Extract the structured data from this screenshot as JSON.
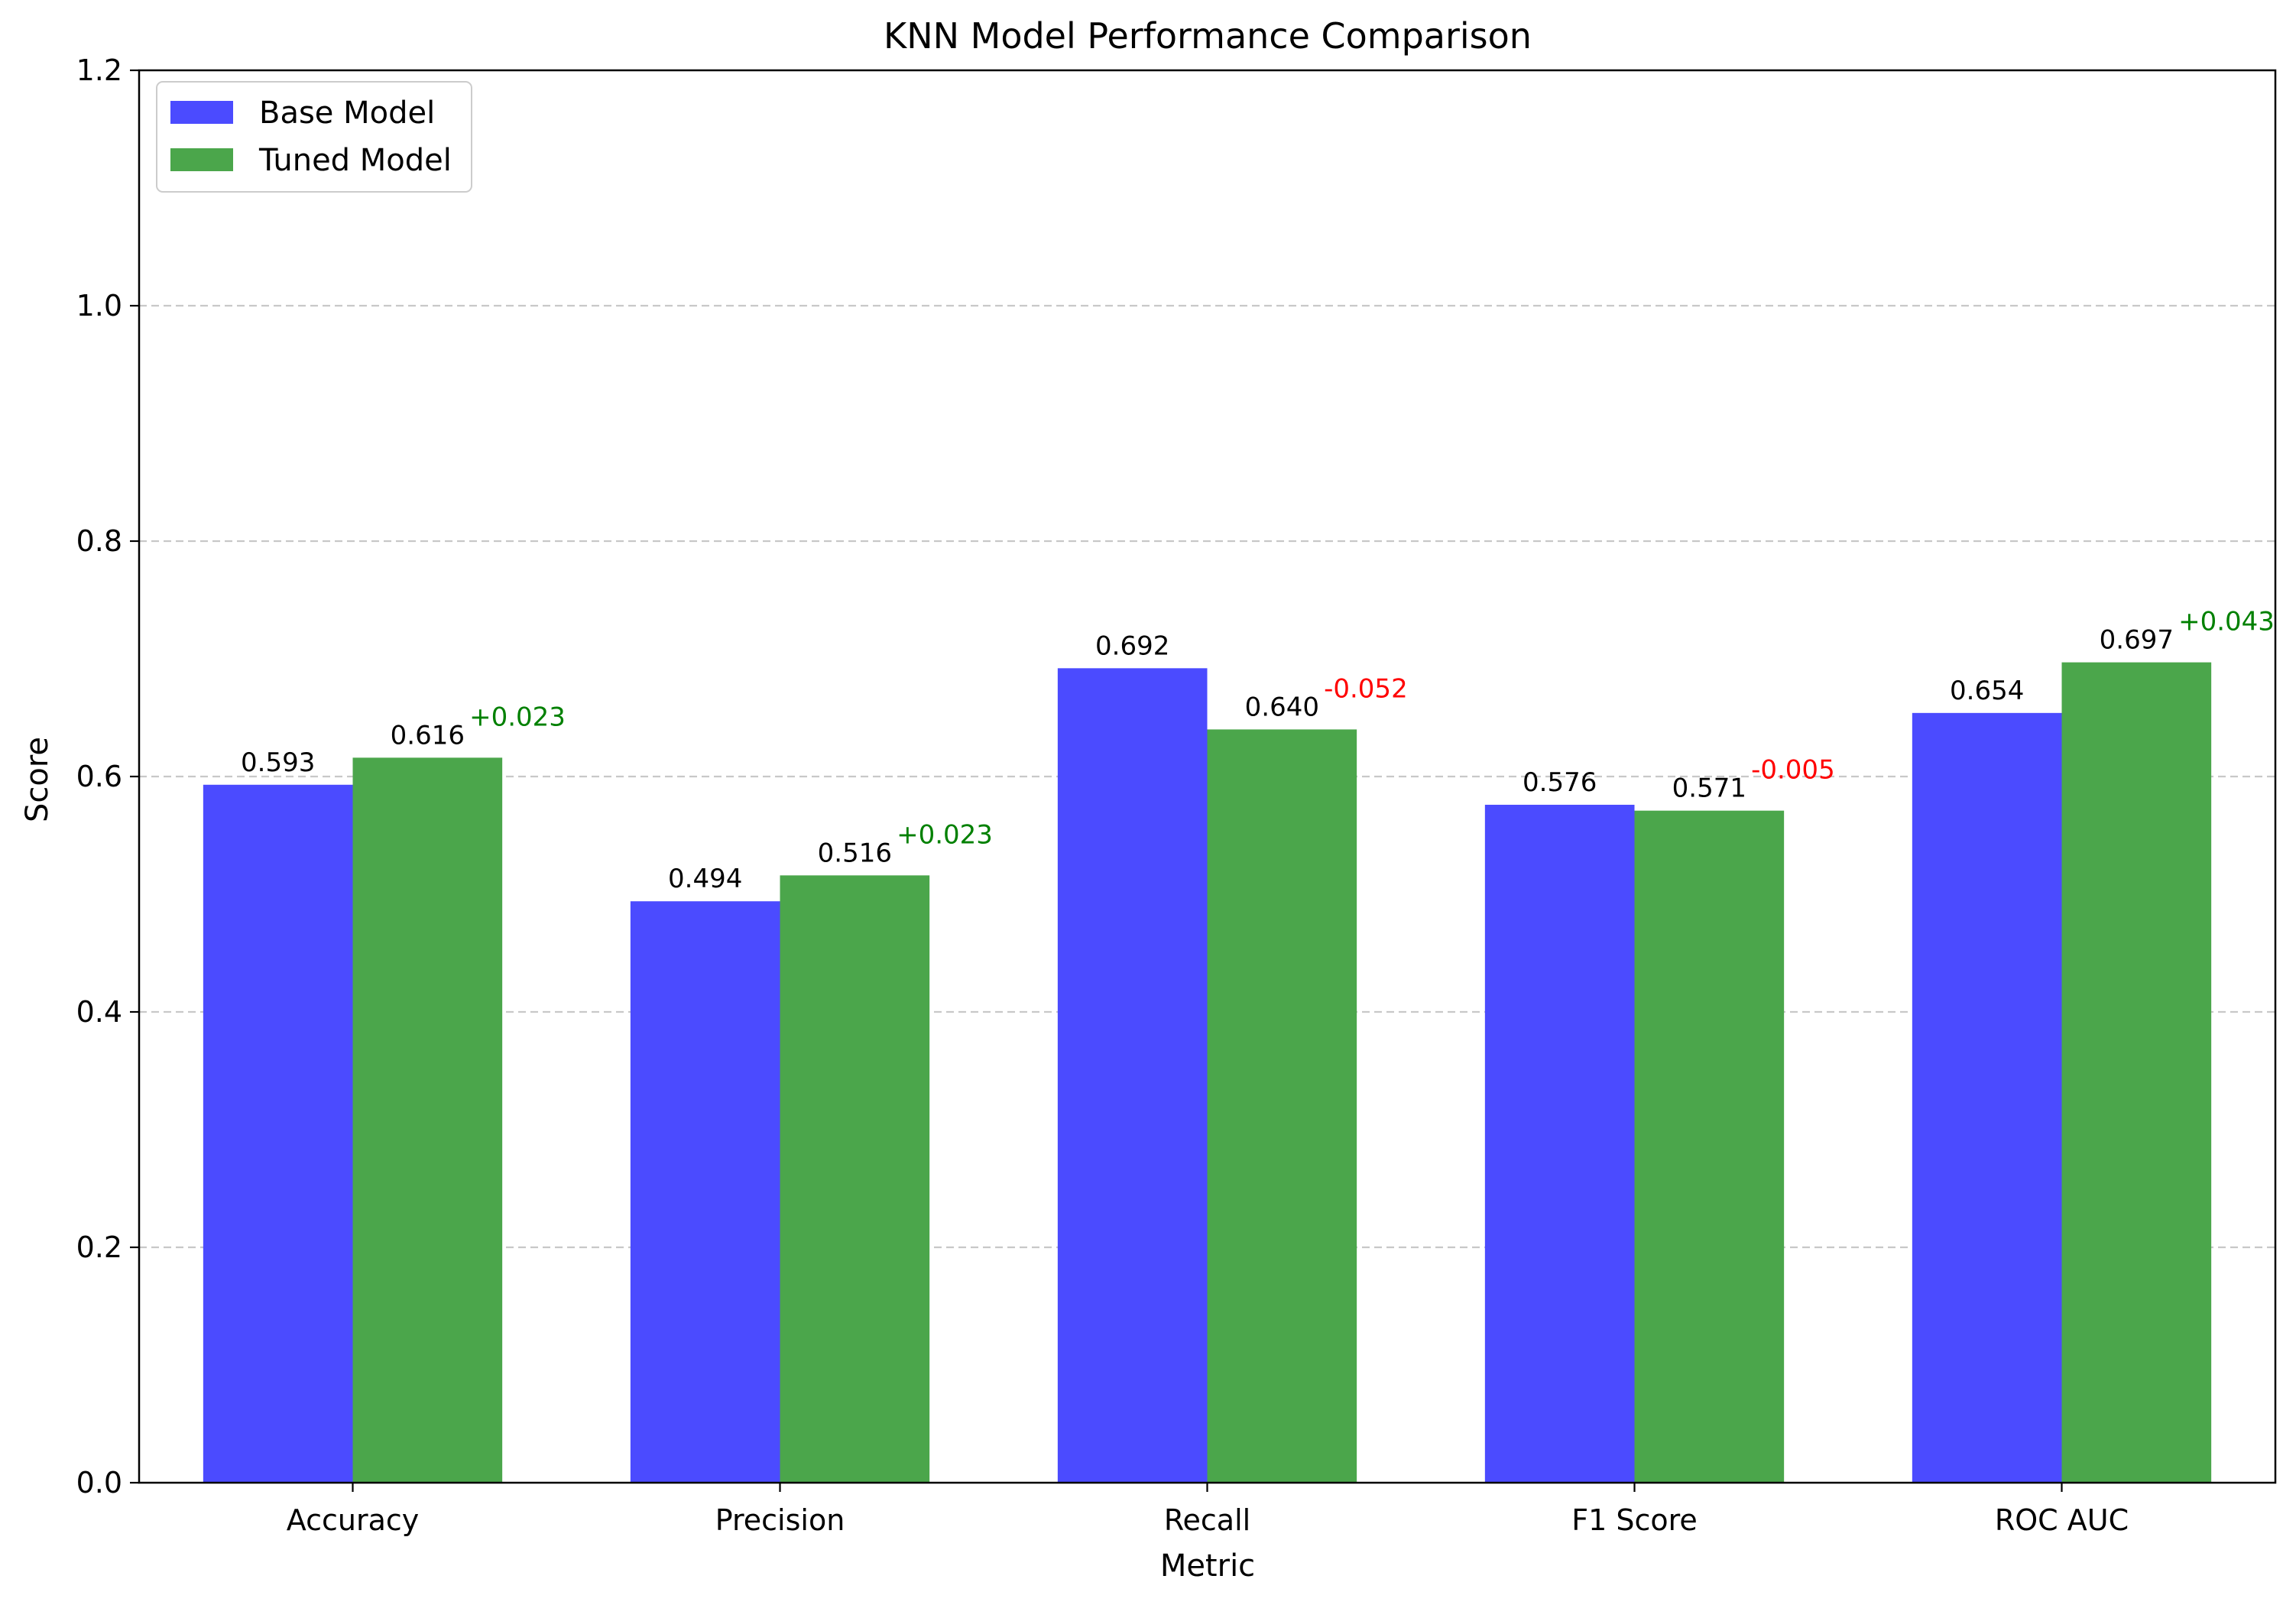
{
  "chart_data": {
    "type": "bar",
    "title": "KNN Model Performance Comparison",
    "xlabel": "Metric",
    "ylabel": "Score",
    "ylim": [
      0,
      1.2
    ],
    "yticks": [
      0.0,
      0.2,
      0.4,
      0.6,
      0.8,
      1.0,
      1.2
    ],
    "ytick_labels": [
      "0.0",
      "0.2",
      "0.4",
      "0.6",
      "0.8",
      "1.0",
      "1.2"
    ],
    "grid": "y-dashed",
    "legend_position": "top-left",
    "categories": [
      "Accuracy",
      "Precision",
      "Recall",
      "F1 Score",
      "ROC AUC"
    ],
    "series": [
      {
        "name": "Base Model",
        "color": "#4b4bff",
        "values": [
          0.593,
          0.494,
          0.692,
          0.576,
          0.654
        ],
        "labels": [
          "0.593",
          "0.494",
          "0.692",
          "0.576",
          "0.654"
        ]
      },
      {
        "name": "Tuned Model",
        "color": "#4ba64b",
        "values": [
          0.616,
          0.516,
          0.64,
          0.571,
          0.697
        ],
        "labels": [
          "0.616",
          "0.516",
          "0.640",
          "0.571",
          "0.697"
        ]
      }
    ],
    "differences": [
      {
        "text": "+0.023",
        "color": "#008000"
      },
      {
        "text": "+0.023",
        "color": "#008000"
      },
      {
        "text": "-0.052",
        "color": "#ff0000"
      },
      {
        "text": "-0.005",
        "color": "#ff0000"
      },
      {
        "text": "+0.043",
        "color": "#008000"
      }
    ]
  }
}
